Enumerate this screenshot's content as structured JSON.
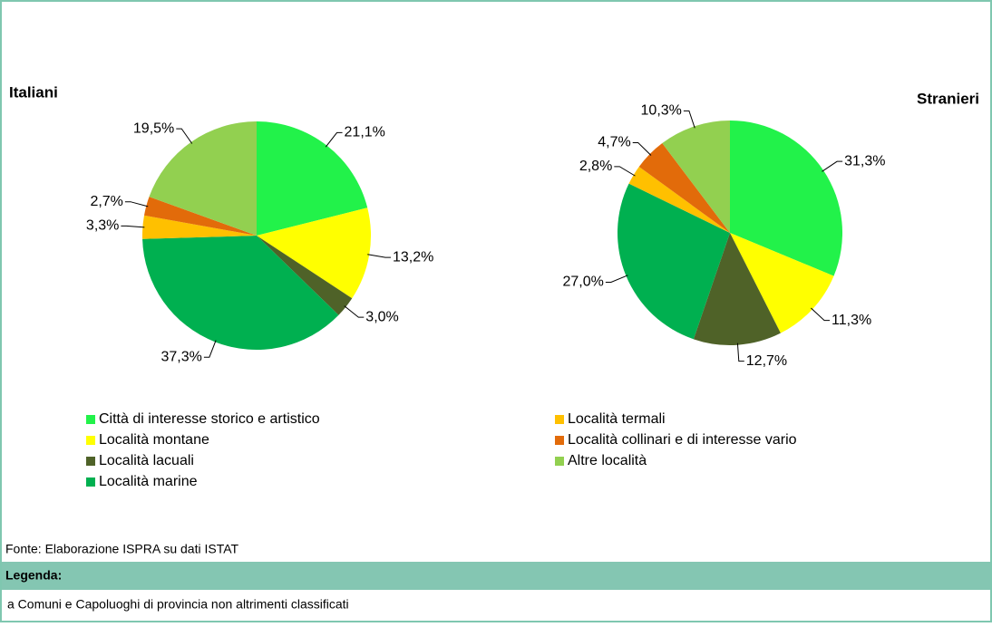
{
  "chart_data": [
    {
      "type": "pie",
      "title": "Italiani",
      "categories": [
        "Città di interesse storico e artistico",
        "Località montane",
        "Località lacuali",
        "Località marine",
        "Località termali",
        "Località collinari e di interesse vario",
        "Altre località"
      ],
      "values": [
        21.1,
        13.2,
        3.0,
        37.3,
        3.3,
        2.7,
        19.5
      ],
      "value_labels": [
        "21,1%",
        "13,2%",
        "3,0%",
        "37,3%",
        "3,3%",
        "2,7%",
        "19,5%"
      ],
      "colors": [
        "#22f24a",
        "#ffff00",
        "#4f6228",
        "#00b050",
        "#ffc000",
        "#e26b0a",
        "#92d050"
      ]
    },
    {
      "type": "pie",
      "title": "Stranieri",
      "categories": [
        "Città di interesse storico e artistico",
        "Località montane",
        "Località lacuali",
        "Località marine",
        "Località termali",
        "Località collinari e di interesse vario",
        "Altre località"
      ],
      "values": [
        31.3,
        11.3,
        12.7,
        27.0,
        2.8,
        4.7,
        10.3
      ],
      "value_labels": [
        "31,3%",
        "11,3%",
        "12,7%",
        "27,0%",
        "2,8%",
        "4,7%",
        "10,3%"
      ],
      "colors": [
        "#22f24a",
        "#ffff00",
        "#4f6228",
        "#00b050",
        "#ffc000",
        "#e26b0a",
        "#92d050"
      ]
    }
  ],
  "source": "Fonte: Elaborazione ISPRA su dati ISTAT",
  "legend_title": "Legenda:",
  "note": "a Comuni e Capoluoghi di provincia non altrimenti classificati"
}
